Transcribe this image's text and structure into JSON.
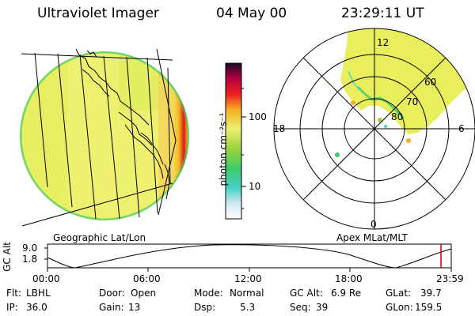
{
  "header": {
    "instrument": "Ultraviolet Imager",
    "date": "04 May 00",
    "time": "23:29:11 UT"
  },
  "colorbar": {
    "unit_label": "photon cm⁻²s⁻¹",
    "ticks": [
      "100",
      "10"
    ]
  },
  "earth_panel": {
    "label": "Geographic Lat/Lon"
  },
  "polar_panel": {
    "label": "Apex MLat/MLT",
    "mlt_labels": {
      "top": "12",
      "left": "18",
      "right": "6",
      "bottom": "0"
    },
    "lat_labels": [
      "60",
      "70",
      "80"
    ],
    "colors": {
      "aurora_fill": "#e8ee5c",
      "grid": "#000000"
    }
  },
  "altitude_plot": {
    "ylabel": "GC Alt",
    "yticks": [
      "9.0",
      "1.8"
    ],
    "xticks": [
      "00:00",
      "06:00",
      "12:00",
      "18:00",
      "23:59"
    ],
    "current_marker_color": "#cc0000"
  },
  "status": {
    "row1": [
      {
        "key": "Flt:",
        "value": "LBHL"
      },
      {
        "key": "Door:",
        "value": "Open"
      },
      {
        "key": "Mode:",
        "value": "Normal"
      },
      {
        "key": "GC Alt:",
        "value": "6.9 Re"
      },
      {
        "key": "GLat:",
        "value": "39.7"
      }
    ],
    "row2": [
      {
        "key": "IP:",
        "value": "36.0"
      },
      {
        "key": "Gain:",
        "value": "13"
      },
      {
        "key": "Dsp:",
        "value": "5.3"
      },
      {
        "key": "Seq:",
        "value": "39"
      },
      {
        "key": "GLon:",
        "value": "159.5"
      }
    ]
  }
}
